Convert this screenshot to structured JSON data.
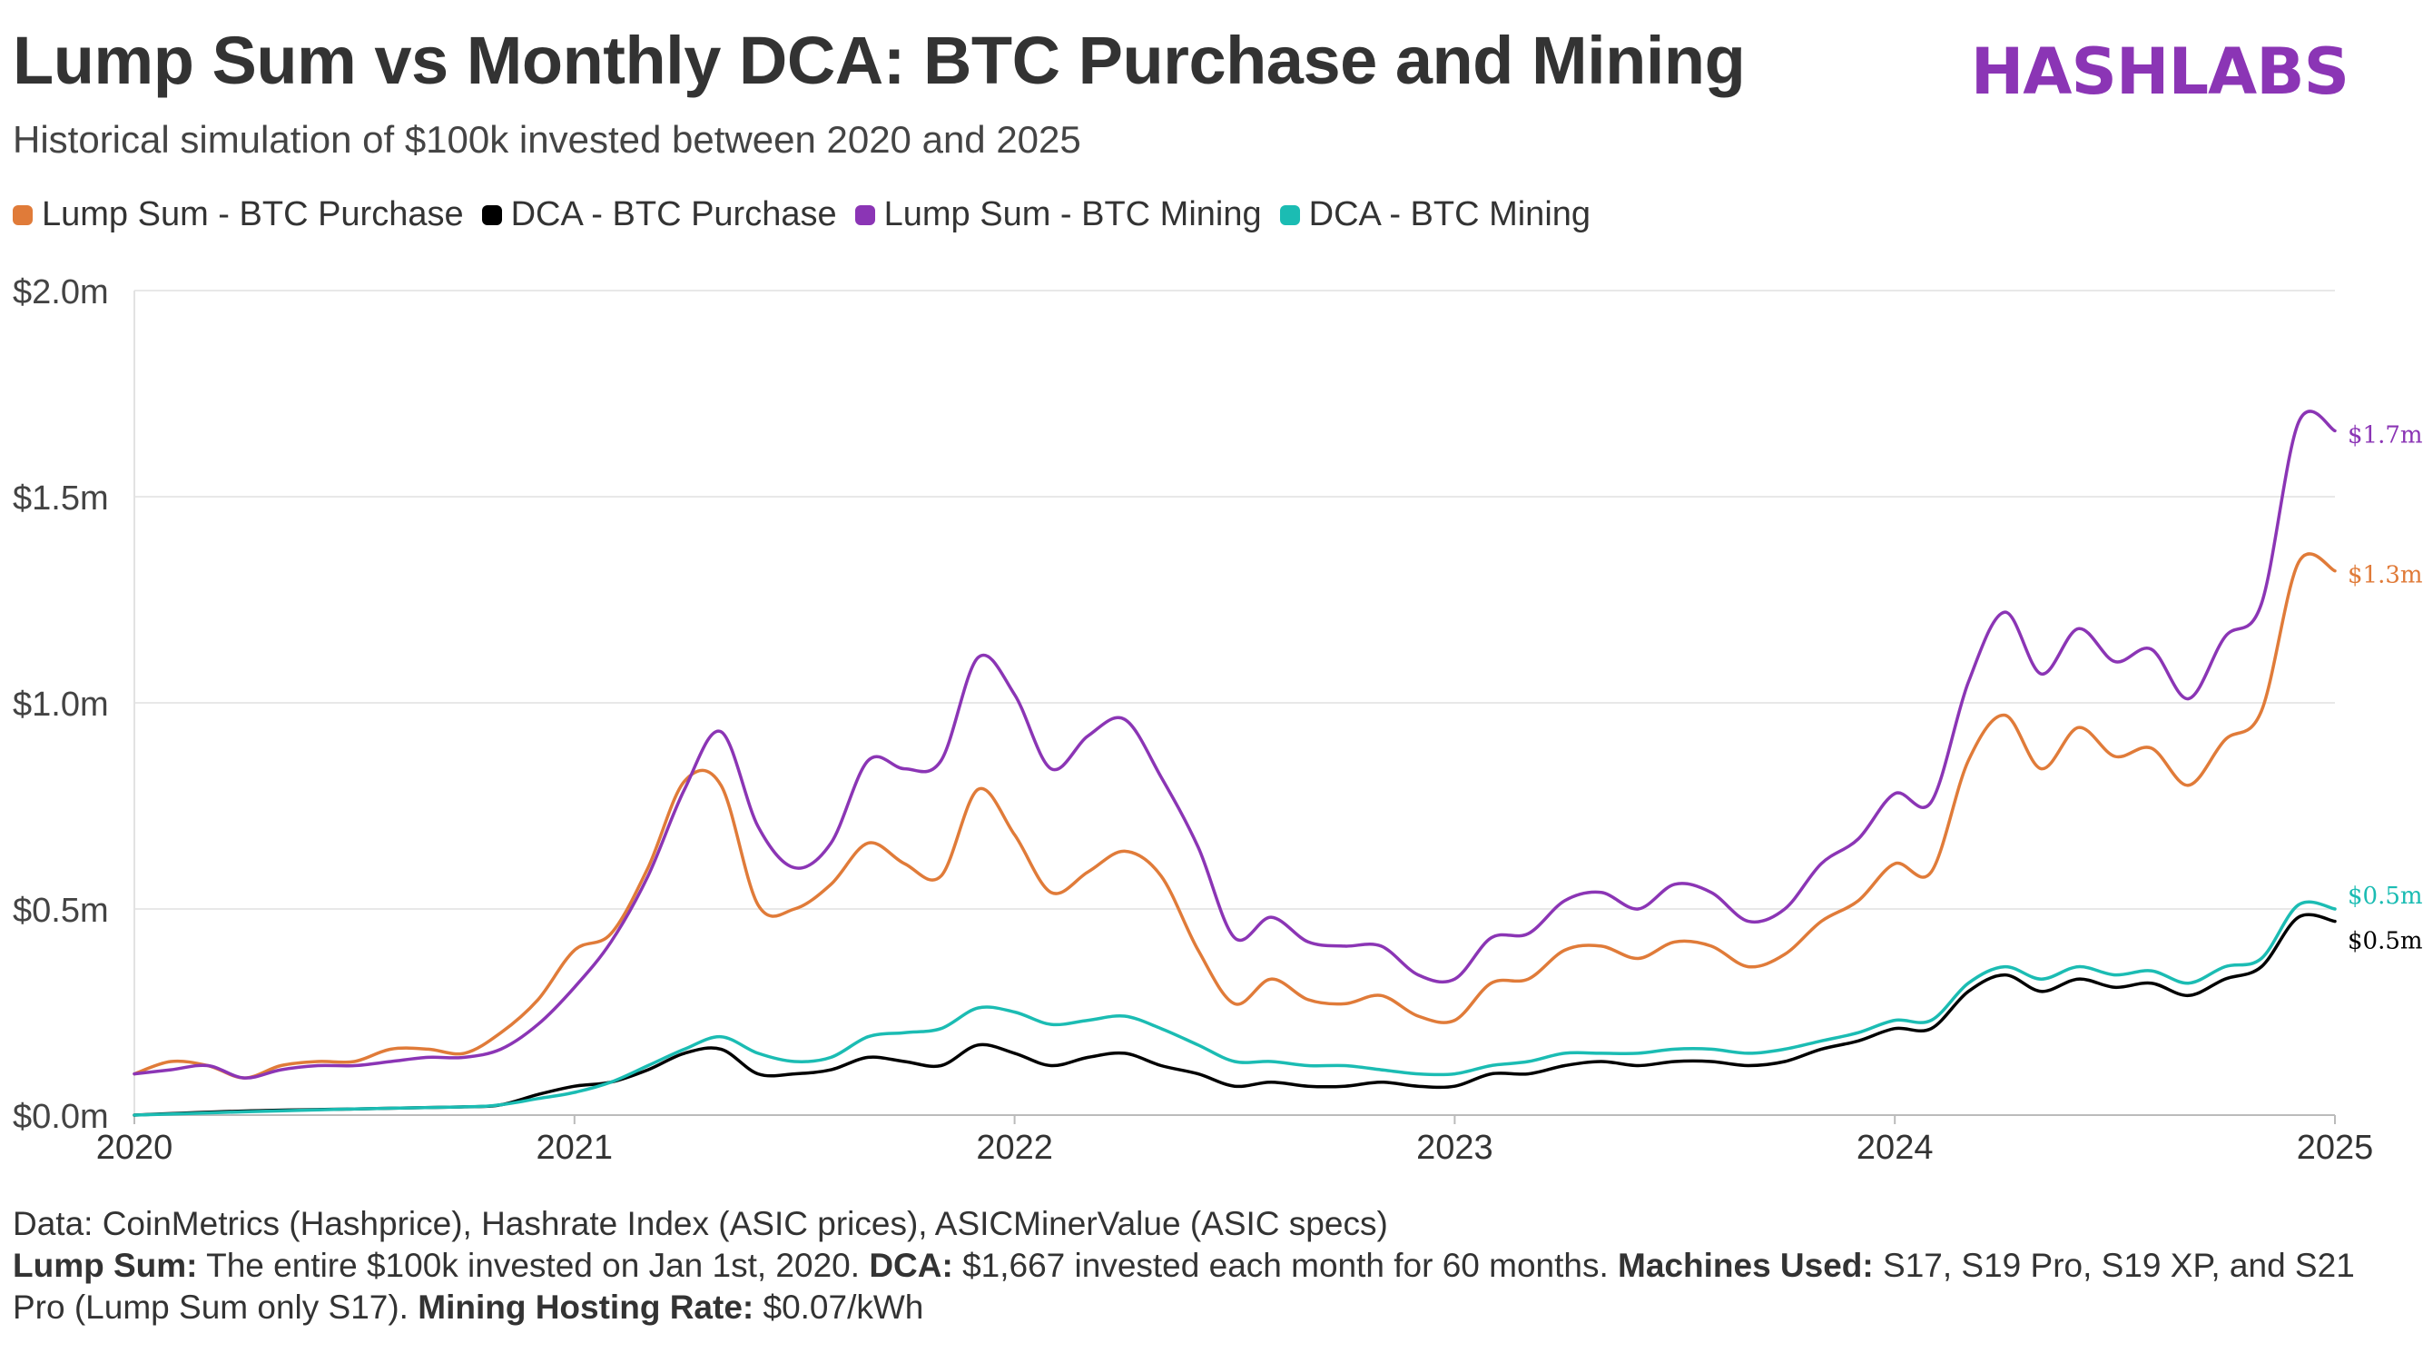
{
  "header": {
    "title": "Lump Sum vs Monthly DCA: BTC Purchase and Mining",
    "subtitle": "Historical simulation of $100k invested between 2020 and 2025",
    "logo": "HASHLABS"
  },
  "colors": {
    "lump_sum_purchase": "#e07b39",
    "dca_purchase": "#000000",
    "lump_sum_mining": "#8b35b5",
    "dca_mining": "#1bbcb3",
    "logo": "#8b35b5",
    "grid": "#e8e8e8"
  },
  "footer": {
    "data_source": "Data: CoinMetrics (Hashprice), Hashrate Index (ASIC prices), ASICMinerValue (ASIC specs)",
    "lump_sum_label": "Lump Sum:",
    "lump_sum_text": " The entire $100k invested on Jan 1st, 2020. ",
    "dca_label": "DCA:",
    "dca_text": " $1,667 invested each month for 60 months. ",
    "machines_label": "Machines Used:",
    "machines_text": " S17, S19 Pro, S19 XP, and S21 Pro (Lump Sum only S17). ",
    "hosting_label": "Mining Hosting Rate:",
    "hosting_text": " $0.07/kWh"
  },
  "chart_data": {
    "type": "line",
    "title": "Lump Sum vs Monthly DCA: BTC Purchase and Mining",
    "xlabel": "",
    "ylabel": "",
    "xlim": [
      2020,
      2025
    ],
    "ylim": [
      0,
      2.0
    ],
    "y_ticks": [
      0,
      0.5,
      1.0,
      1.5,
      2.0
    ],
    "y_tick_labels": [
      "$0.0m",
      "$0.5m",
      "$1.0m",
      "$1.5m",
      "$2.0m"
    ],
    "x_ticks": [
      2020,
      2021,
      2022,
      2023,
      2024,
      2025
    ],
    "x_tick_labels": [
      "2020",
      "2021",
      "2022",
      "2023",
      "2024",
      "2025"
    ],
    "grid": "horizontal",
    "legend": "top-left",
    "series": [
      {
        "name": "Lump Sum - BTC Purchase",
        "color": "#e07b39",
        "end_label": "$1.3m",
        "points": [
          [
            2020.0,
            0.1
          ],
          [
            2020.083,
            0.13
          ],
          [
            2020.167,
            0.12
          ],
          [
            2020.25,
            0.09
          ],
          [
            2020.333,
            0.12
          ],
          [
            2020.417,
            0.13
          ],
          [
            2020.5,
            0.13
          ],
          [
            2020.583,
            0.16
          ],
          [
            2020.667,
            0.16
          ],
          [
            2020.75,
            0.15
          ],
          [
            2020.833,
            0.2
          ],
          [
            2020.917,
            0.28
          ],
          [
            2021.0,
            0.4
          ],
          [
            2021.083,
            0.44
          ],
          [
            2021.167,
            0.6
          ],
          [
            2021.25,
            0.81
          ],
          [
            2021.333,
            0.8
          ],
          [
            2021.417,
            0.51
          ],
          [
            2021.5,
            0.5
          ],
          [
            2021.583,
            0.56
          ],
          [
            2021.667,
            0.66
          ],
          [
            2021.75,
            0.61
          ],
          [
            2021.833,
            0.58
          ],
          [
            2021.917,
            0.79
          ],
          [
            2022.0,
            0.68
          ],
          [
            2022.083,
            0.54
          ],
          [
            2022.167,
            0.59
          ],
          [
            2022.25,
            0.64
          ],
          [
            2022.333,
            0.58
          ],
          [
            2022.417,
            0.4
          ],
          [
            2022.5,
            0.27
          ],
          [
            2022.583,
            0.33
          ],
          [
            2022.667,
            0.28
          ],
          [
            2022.75,
            0.27
          ],
          [
            2022.833,
            0.29
          ],
          [
            2022.917,
            0.24
          ],
          [
            2023.0,
            0.23
          ],
          [
            2023.083,
            0.32
          ],
          [
            2023.167,
            0.33
          ],
          [
            2023.25,
            0.4
          ],
          [
            2023.333,
            0.41
          ],
          [
            2023.417,
            0.38
          ],
          [
            2023.5,
            0.42
          ],
          [
            2023.583,
            0.41
          ],
          [
            2023.667,
            0.36
          ],
          [
            2023.75,
            0.39
          ],
          [
            2023.833,
            0.47
          ],
          [
            2023.917,
            0.52
          ],
          [
            2024.0,
            0.61
          ],
          [
            2024.083,
            0.59
          ],
          [
            2024.167,
            0.86
          ],
          [
            2024.25,
            0.97
          ],
          [
            2024.333,
            0.84
          ],
          [
            2024.417,
            0.94
          ],
          [
            2024.5,
            0.87
          ],
          [
            2024.583,
            0.89
          ],
          [
            2024.667,
            0.8
          ],
          [
            2024.75,
            0.91
          ],
          [
            2024.833,
            0.98
          ],
          [
            2024.917,
            1.34
          ],
          [
            2025.0,
            1.32
          ]
        ]
      },
      {
        "name": "DCA - BTC Purchase",
        "color": "#000000",
        "end_label": "$0.5m",
        "points": [
          [
            2020.0,
            0.0
          ],
          [
            2020.25,
            0.01
          ],
          [
            2020.5,
            0.015
          ],
          [
            2020.75,
            0.02
          ],
          [
            2020.833,
            0.025
          ],
          [
            2020.917,
            0.05
          ],
          [
            2021.0,
            0.07
          ],
          [
            2021.083,
            0.08
          ],
          [
            2021.167,
            0.11
          ],
          [
            2021.25,
            0.15
          ],
          [
            2021.333,
            0.16
          ],
          [
            2021.417,
            0.1
          ],
          [
            2021.5,
            0.1
          ],
          [
            2021.583,
            0.11
          ],
          [
            2021.667,
            0.14
          ],
          [
            2021.75,
            0.13
          ],
          [
            2021.833,
            0.12
          ],
          [
            2021.917,
            0.17
          ],
          [
            2022.0,
            0.15
          ],
          [
            2022.083,
            0.12
          ],
          [
            2022.167,
            0.14
          ],
          [
            2022.25,
            0.15
          ],
          [
            2022.333,
            0.12
          ],
          [
            2022.417,
            0.1
          ],
          [
            2022.5,
            0.07
          ],
          [
            2022.583,
            0.08
          ],
          [
            2022.667,
            0.07
          ],
          [
            2022.75,
            0.07
          ],
          [
            2022.833,
            0.08
          ],
          [
            2022.917,
            0.07
          ],
          [
            2023.0,
            0.07
          ],
          [
            2023.083,
            0.1
          ],
          [
            2023.167,
            0.1
          ],
          [
            2023.25,
            0.12
          ],
          [
            2023.333,
            0.13
          ],
          [
            2023.417,
            0.12
          ],
          [
            2023.5,
            0.13
          ],
          [
            2023.583,
            0.13
          ],
          [
            2023.667,
            0.12
          ],
          [
            2023.75,
            0.13
          ],
          [
            2023.833,
            0.16
          ],
          [
            2023.917,
            0.18
          ],
          [
            2024.0,
            0.21
          ],
          [
            2024.083,
            0.21
          ],
          [
            2024.167,
            0.3
          ],
          [
            2024.25,
            0.34
          ],
          [
            2024.333,
            0.3
          ],
          [
            2024.417,
            0.33
          ],
          [
            2024.5,
            0.31
          ],
          [
            2024.583,
            0.32
          ],
          [
            2024.667,
            0.29
          ],
          [
            2024.75,
            0.33
          ],
          [
            2024.833,
            0.36
          ],
          [
            2024.917,
            0.48
          ],
          [
            2025.0,
            0.47
          ]
        ]
      },
      {
        "name": "Lump Sum - BTC Mining",
        "color": "#8b35b5",
        "end_label": "$1.7m",
        "points": [
          [
            2020.0,
            0.1
          ],
          [
            2020.083,
            0.11
          ],
          [
            2020.167,
            0.12
          ],
          [
            2020.25,
            0.09
          ],
          [
            2020.333,
            0.11
          ],
          [
            2020.417,
            0.12
          ],
          [
            2020.5,
            0.12
          ],
          [
            2020.583,
            0.13
          ],
          [
            2020.667,
            0.14
          ],
          [
            2020.75,
            0.14
          ],
          [
            2020.833,
            0.16
          ],
          [
            2020.917,
            0.22
          ],
          [
            2021.0,
            0.31
          ],
          [
            2021.083,
            0.42
          ],
          [
            2021.167,
            0.58
          ],
          [
            2021.25,
            0.79
          ],
          [
            2021.333,
            0.93
          ],
          [
            2021.417,
            0.7
          ],
          [
            2021.5,
            0.6
          ],
          [
            2021.583,
            0.66
          ],
          [
            2021.667,
            0.86
          ],
          [
            2021.75,
            0.84
          ],
          [
            2021.833,
            0.86
          ],
          [
            2021.917,
            1.11
          ],
          [
            2022.0,
            1.02
          ],
          [
            2022.083,
            0.84
          ],
          [
            2022.167,
            0.92
          ],
          [
            2022.25,
            0.96
          ],
          [
            2022.333,
            0.82
          ],
          [
            2022.417,
            0.65
          ],
          [
            2022.5,
            0.43
          ],
          [
            2022.583,
            0.48
          ],
          [
            2022.667,
            0.42
          ],
          [
            2022.75,
            0.41
          ],
          [
            2022.833,
            0.41
          ],
          [
            2022.917,
            0.34
          ],
          [
            2023.0,
            0.33
          ],
          [
            2023.083,
            0.43
          ],
          [
            2023.167,
            0.44
          ],
          [
            2023.25,
            0.52
          ],
          [
            2023.333,
            0.54
          ],
          [
            2023.417,
            0.5
          ],
          [
            2023.5,
            0.56
          ],
          [
            2023.583,
            0.54
          ],
          [
            2023.667,
            0.47
          ],
          [
            2023.75,
            0.5
          ],
          [
            2023.833,
            0.61
          ],
          [
            2023.917,
            0.67
          ],
          [
            2024.0,
            0.78
          ],
          [
            2024.083,
            0.76
          ],
          [
            2024.167,
            1.05
          ],
          [
            2024.25,
            1.22
          ],
          [
            2024.333,
            1.07
          ],
          [
            2024.417,
            1.18
          ],
          [
            2024.5,
            1.1
          ],
          [
            2024.583,
            1.13
          ],
          [
            2024.667,
            1.01
          ],
          [
            2024.75,
            1.16
          ],
          [
            2024.833,
            1.24
          ],
          [
            2024.917,
            1.68
          ],
          [
            2025.0,
            1.66
          ]
        ]
      },
      {
        "name": "DCA - BTC Mining",
        "color": "#1bbcb3",
        "end_label": "$0.5m",
        "points": [
          [
            2020.0,
            0.0
          ],
          [
            2020.25,
            0.008
          ],
          [
            2020.5,
            0.015
          ],
          [
            2020.75,
            0.02
          ],
          [
            2020.833,
            0.025
          ],
          [
            2020.917,
            0.04
          ],
          [
            2021.0,
            0.055
          ],
          [
            2021.083,
            0.08
          ],
          [
            2021.167,
            0.12
          ],
          [
            2021.25,
            0.16
          ],
          [
            2021.333,
            0.19
          ],
          [
            2021.417,
            0.15
          ],
          [
            2021.5,
            0.13
          ],
          [
            2021.583,
            0.14
          ],
          [
            2021.667,
            0.19
          ],
          [
            2021.75,
            0.2
          ],
          [
            2021.833,
            0.21
          ],
          [
            2021.917,
            0.26
          ],
          [
            2022.0,
            0.25
          ],
          [
            2022.083,
            0.22
          ],
          [
            2022.167,
            0.23
          ],
          [
            2022.25,
            0.24
          ],
          [
            2022.333,
            0.21
          ],
          [
            2022.417,
            0.17
          ],
          [
            2022.5,
            0.13
          ],
          [
            2022.583,
            0.13
          ],
          [
            2022.667,
            0.12
          ],
          [
            2022.75,
            0.12
          ],
          [
            2022.833,
            0.11
          ],
          [
            2022.917,
            0.1
          ],
          [
            2023.0,
            0.1
          ],
          [
            2023.083,
            0.12
          ],
          [
            2023.167,
            0.13
          ],
          [
            2023.25,
            0.15
          ],
          [
            2023.333,
            0.15
          ],
          [
            2023.417,
            0.15
          ],
          [
            2023.5,
            0.16
          ],
          [
            2023.583,
            0.16
          ],
          [
            2023.667,
            0.15
          ],
          [
            2023.75,
            0.16
          ],
          [
            2023.833,
            0.18
          ],
          [
            2023.917,
            0.2
          ],
          [
            2024.0,
            0.23
          ],
          [
            2024.083,
            0.23
          ],
          [
            2024.167,
            0.32
          ],
          [
            2024.25,
            0.36
          ],
          [
            2024.333,
            0.33
          ],
          [
            2024.417,
            0.36
          ],
          [
            2024.5,
            0.34
          ],
          [
            2024.583,
            0.35
          ],
          [
            2024.667,
            0.32
          ],
          [
            2024.75,
            0.36
          ],
          [
            2024.833,
            0.38
          ],
          [
            2024.917,
            0.51
          ],
          [
            2025.0,
            0.5
          ]
        ]
      }
    ]
  }
}
